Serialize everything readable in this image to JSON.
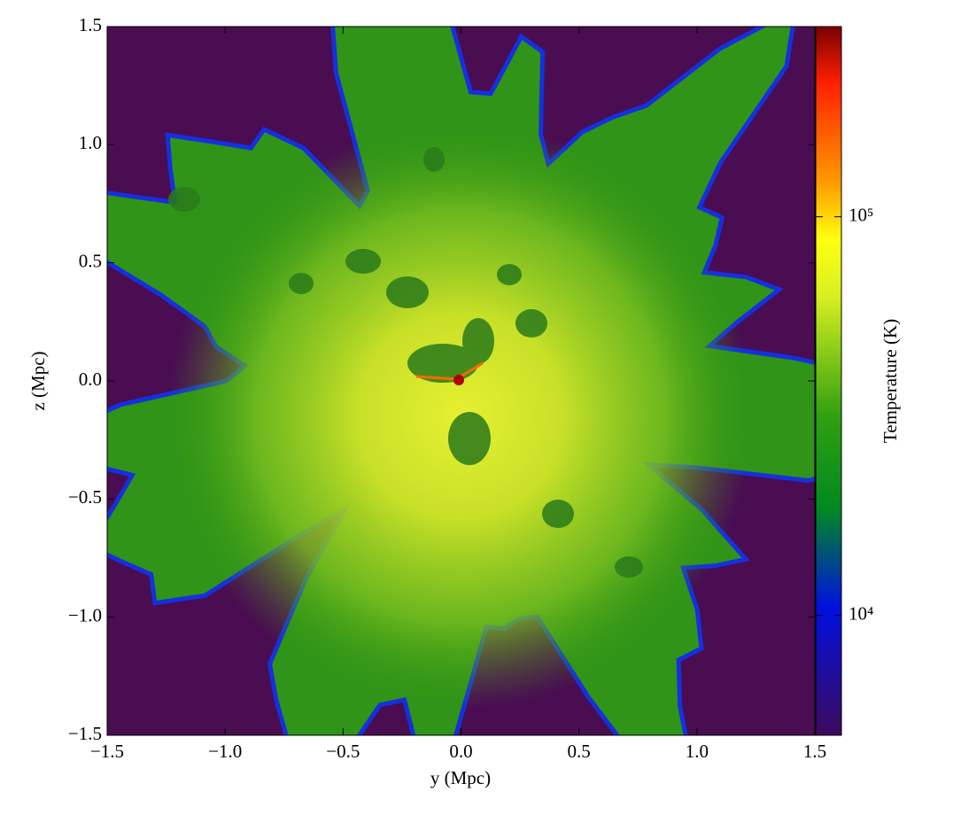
{
  "chart_data": {
    "type": "heatmap",
    "x_label": "y  (Mpc)",
    "y_label": "z  (Mpc)",
    "xlim": [
      -1.5,
      1.5
    ],
    "xticks": [
      {
        "value": -1.5,
        "label": "−1.5"
      },
      {
        "value": -1,
        "label": "−1.0"
      },
      {
        "value": -0.5,
        "label": "−0.5"
      },
      {
        "value": 0,
        "label": "0.0"
      },
      0.5,
      {
        "value": 1,
        "label": "1.0"
      },
      1.5
    ],
    "ylim": [
      -1.5,
      1.5
    ],
    "yticks": [
      {
        "value": -1.5,
        "label": "−1.5"
      },
      {
        "value": -1,
        "label": "−1.0"
      },
      {
        "value": -0.5,
        "label": "−0.5"
      },
      {
        "value": 0,
        "label": "0.0"
      },
      0.5,
      {
        "value": 1,
        "label": "1.0"
      },
      1.5
    ],
    "colorbar": {
      "label": "Temperature  (K)",
      "scale": "log",
      "lim": [
        5000,
        300000
      ],
      "ticks": [
        {
          "value": 10000,
          "label": "10⁴"
        },
        {
          "value": 100000,
          "label": "10⁵"
        }
      ]
    }
  }
}
